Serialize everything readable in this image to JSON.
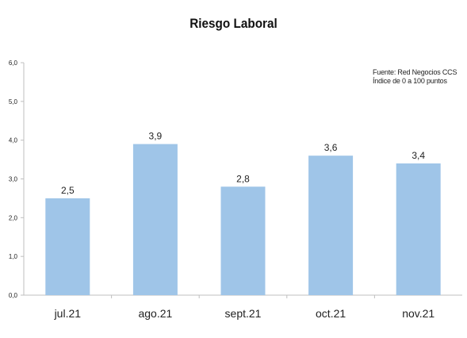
{
  "chart_data": {
    "type": "bar",
    "title": "Riesgo Laboral",
    "categories": [
      "jul.21",
      "ago.21",
      "sept.21",
      "oct.21",
      "nov.21"
    ],
    "values": [
      2.5,
      3.9,
      2.8,
      3.6,
      3.4
    ],
    "value_labels": [
      "2,5",
      "3,9",
      "2,8",
      "3,6",
      "3,4"
    ],
    "ylim": [
      0,
      6
    ],
    "yticks": [
      0,
      1,
      2,
      3,
      4,
      5,
      6
    ],
    "ytick_labels": [
      "0,0",
      "1,0",
      "2,0",
      "3,0",
      "4,0",
      "5,0",
      "6,0"
    ],
    "xlabel": "",
    "ylabel": "",
    "grid": false,
    "legend": "none",
    "bar_color": "#9fc5e8",
    "annotations": [
      "Fuente: Red Negocios CCS",
      "Índice de 0 a 100 puntos"
    ]
  }
}
